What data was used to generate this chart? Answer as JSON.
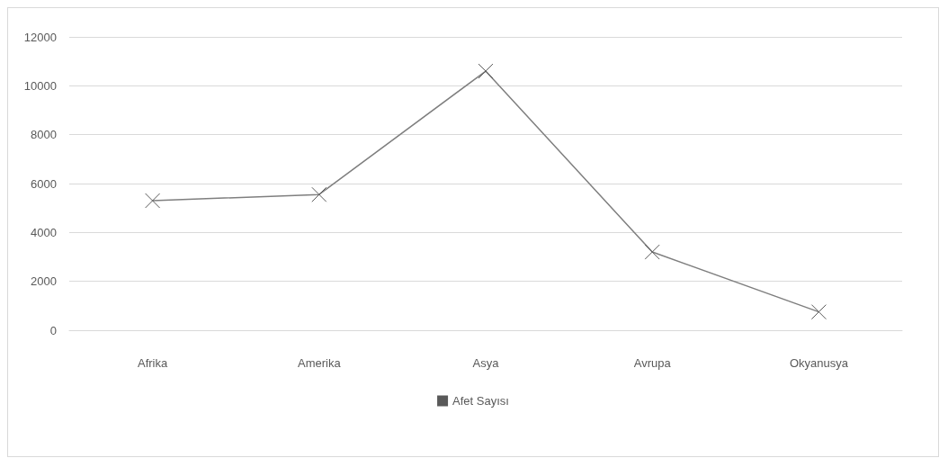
{
  "chart_data": {
    "type": "line",
    "categories": [
      "Afrika",
      "Amerika",
      "Asya",
      "Avrupa",
      "Okyanusya"
    ],
    "series": [
      {
        "name": "Afet Sayısı",
        "color": "#7f7f7f",
        "values": [
          5300,
          5550,
          10600,
          3200,
          750
        ]
      }
    ],
    "ylim": [
      0,
      12000
    ],
    "yticks": [
      0,
      2000,
      4000,
      6000,
      8000,
      10000,
      12000
    ],
    "grid": "y",
    "legend": "bottom",
    "marker": "cross",
    "line_style": "solid"
  }
}
